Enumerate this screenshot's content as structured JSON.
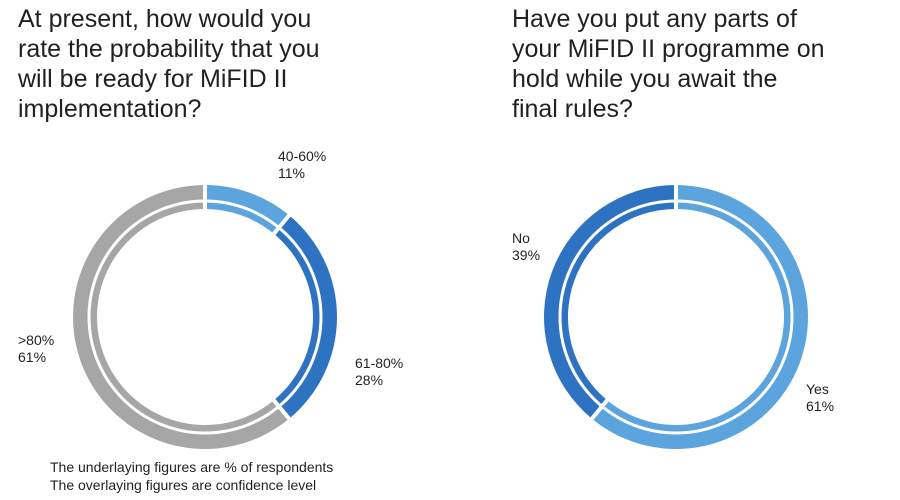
{
  "chart_data": [
    {
      "type": "pie",
      "title": "At present, how would you\nrate the probability that you\nwill be ready for MiFID II\nimplementation?",
      "slices": [
        {
          "label": "40-60%",
          "value": 11,
          "display": "11%",
          "color": "#5ba4de"
        },
        {
          "label": "61-80%",
          "value": 28,
          "display": "28%",
          "color": "#2e73c2"
        },
        {
          "label": ">80%",
          "value": 61,
          "display": "61%",
          "color": "#a6a6a6"
        }
      ],
      "notes": [
        "The underlaying figures are % of respondents",
        "The overlaying figures are confidence level"
      ]
    },
    {
      "type": "pie",
      "title": "Have you put any parts of\nyour MiFID II programme on\nhold while you await the\nfinal rules?",
      "slices": [
        {
          "label": "Yes",
          "value": 61,
          "display": "61%",
          "color": "#5ba4de"
        },
        {
          "label": "No",
          "value": 39,
          "display": "39%",
          "color": "#2e73c2"
        }
      ]
    }
  ]
}
